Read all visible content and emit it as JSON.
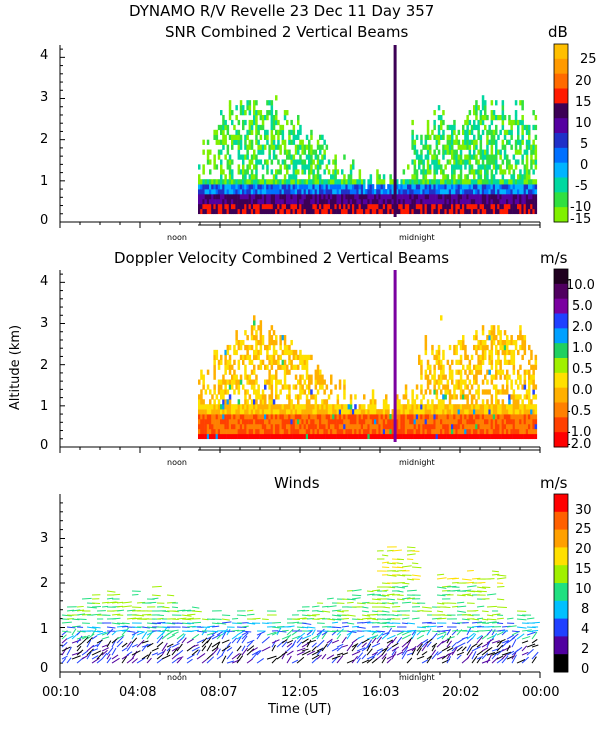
{
  "header": {
    "line1": "DYNAMO R/V Revelle  23 Dec 11 Day 357",
    "snr_title": "SNR Combined 2 Vertical Beams",
    "doppler_title": "Doppler Velocity Combined 2 Vertical Beams",
    "winds_title": "Winds"
  },
  "ylabel": "Altitude (km)",
  "xlabel": "Time (UT)",
  "day_marks": {
    "noon": "noon",
    "midnight": "midnight"
  },
  "chart_data": [
    {
      "type": "heatmap",
      "title": "SNR Combined 2 Vertical Beams",
      "ylim": [
        0,
        4.3
      ],
      "yticks": [
        "0",
        "1",
        "2",
        "3",
        "4"
      ],
      "colorbar": {
        "unit": "dB",
        "ticks": [
          "25",
          "20",
          "15",
          "10",
          "5",
          "0",
          "-5",
          "-10",
          "-15"
        ],
        "colors": [
          "#ffbf00",
          "#ff9a00",
          "#ff6a00",
          "#ff1a00",
          "#3c0055",
          "#5500a0",
          "#2030c8",
          "#0070ff",
          "#00b4ff",
          "#00d8a0",
          "#30e040",
          "#80f000"
        ]
      }
    },
    {
      "type": "heatmap",
      "title": "Doppler Velocity Combined 2 Vertical Beams",
      "ylim": [
        0,
        4.3
      ],
      "yticks": [
        "0",
        "1",
        "2",
        "3",
        "4"
      ],
      "colorbar": {
        "unit": "m/s",
        "ticks": [
          "10.0",
          "5.0",
          "2.0",
          "1.0",
          "0.5",
          "0.0",
          "-0.5",
          "-1.0",
          "-2.0"
        ],
        "colors": [
          "#200020",
          "#500060",
          "#7a00a0",
          "#2040ff",
          "#00a0ff",
          "#20d060",
          "#a0f000",
          "#ffe000",
          "#ffb000",
          "#ff8000",
          "#ff4000",
          "#ff0000"
        ]
      }
    },
    {
      "type": "scatter",
      "title": "Winds",
      "ylim": [
        0,
        4
      ],
      "yticks": [
        "0",
        "1",
        "2",
        "3"
      ],
      "xticks": [
        "00:10",
        "04:08",
        "08:07",
        "12:05",
        "16:03",
        "20:02",
        "00:00"
      ],
      "colorbar": {
        "unit": "m/s",
        "ticks": [
          "30",
          "25",
          "20",
          "15",
          "10",
          "8",
          "4",
          "2",
          "0"
        ],
        "colors": [
          "#ff0000",
          "#ff6000",
          "#ffa000",
          "#ffe000",
          "#a0f000",
          "#20e080",
          "#00c0ff",
          "#2040ff",
          "#5000a0",
          "#000000"
        ]
      }
    }
  ]
}
